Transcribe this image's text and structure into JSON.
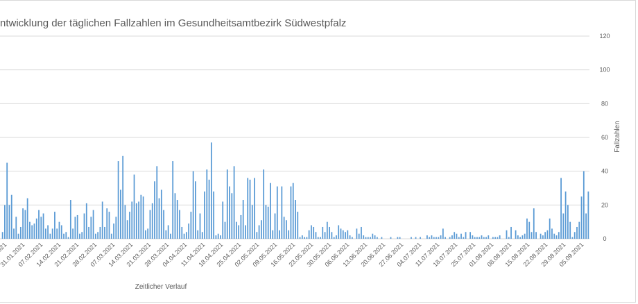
{
  "chart_data": {
    "type": "bar",
    "title": "ntwicklung der täglichen Fallzahlen im Gesundheitsamtbezirk Südwestpfalz",
    "xlabel": "Zeitlicher Verlauf",
    "ylabel": "Fallzahlen",
    "ylim": [
      0,
      120
    ],
    "y_ticks": [
      0,
      20,
      40,
      60,
      80,
      100,
      120
    ],
    "y_axis_side": "right",
    "grid": true,
    "legend": "none",
    "bar_color": "#5b9bd5",
    "grid_color": "#d9d9d9",
    "text_color": "#595959",
    "x_tick_labels": [
      "…2021",
      "31.01.2021",
      "07.02.2021",
      "14.02.2021",
      "21.02.2021",
      "28.02.2021",
      "07.03.2021",
      "14.03.2021",
      "21.03.2021",
      "28.03.2021",
      "04.04.2021",
      "11.04.2021",
      "18.04.2021",
      "25.04.2021",
      "02.05.2021",
      "09.05.2021",
      "16.05.2021",
      "23.05.2021",
      "30.05.2021",
      "06.06.2021",
      "13.06.2021",
      "20.06.2021",
      "27.06.2021",
      "04.07.2021",
      "11.07.2021",
      "18.07.2021",
      "25.07.2021",
      "01.08.2021",
      "08.08.2021",
      "15.08.2021",
      "22.08.2021",
      "29.08.2021",
      "05.09.2021"
    ],
    "values": [
      4,
      20,
      45,
      20,
      26,
      6,
      13,
      3,
      7,
      18,
      17,
      24,
      10,
      8,
      9,
      12,
      17,
      13,
      15,
      6,
      8,
      3,
      6,
      16,
      6,
      10,
      8,
      3,
      4,
      1,
      23,
      6,
      13,
      14,
      3,
      4,
      15,
      21,
      7,
      13,
      17,
      3,
      4,
      7,
      22,
      7,
      18,
      16,
      3,
      9,
      13,
      46,
      29,
      49,
      20,
      11,
      16,
      22,
      38,
      21,
      22,
      26,
      25,
      5,
      6,
      17,
      21,
      34,
      43,
      24,
      29,
      17,
      5,
      8,
      3,
      46,
      27,
      23,
      17,
      7,
      3,
      4,
      9,
      16,
      40,
      34,
      5,
      15,
      4,
      28,
      41,
      35,
      57,
      28,
      2,
      3,
      2,
      22,
      10,
      41,
      31,
      27,
      43,
      10,
      8,
      14,
      23,
      8,
      36,
      35,
      20,
      36,
      4,
      8,
      11,
      41,
      20,
      19,
      33,
      5,
      15,
      31,
      5,
      31,
      13,
      11,
      5,
      31,
      33,
      23,
      16,
      1,
      2,
      1,
      1,
      5,
      8,
      7,
      4,
      1,
      1,
      7,
      4,
      10,
      7,
      4,
      1,
      2,
      8,
      6,
      5,
      4,
      5,
      2,
      1,
      0,
      6,
      3,
      7,
      2,
      1,
      1,
      1,
      3,
      2,
      1,
      0,
      1,
      0,
      0,
      0,
      1,
      0,
      0,
      1,
      1,
      0,
      0,
      0,
      0,
      1,
      0,
      1,
      0,
      1,
      0,
      0,
      2,
      1,
      2,
      1,
      1,
      1,
      2,
      6,
      1,
      0,
      1,
      2,
      4,
      3,
      1,
      3,
      1,
      4,
      0,
      4,
      2,
      1,
      1,
      1,
      2,
      1,
      1,
      2,
      0,
      1,
      1,
      1,
      2,
      0,
      0,
      5,
      1,
      7,
      0,
      5,
      2,
      1,
      2,
      3,
      12,
      10,
      4,
      18,
      4,
      0,
      3,
      2,
      4,
      5,
      12,
      6,
      3,
      2,
      4,
      36,
      15,
      28,
      20,
      10,
      1,
      4,
      7,
      10,
      25,
      40,
      15,
      28
    ]
  }
}
